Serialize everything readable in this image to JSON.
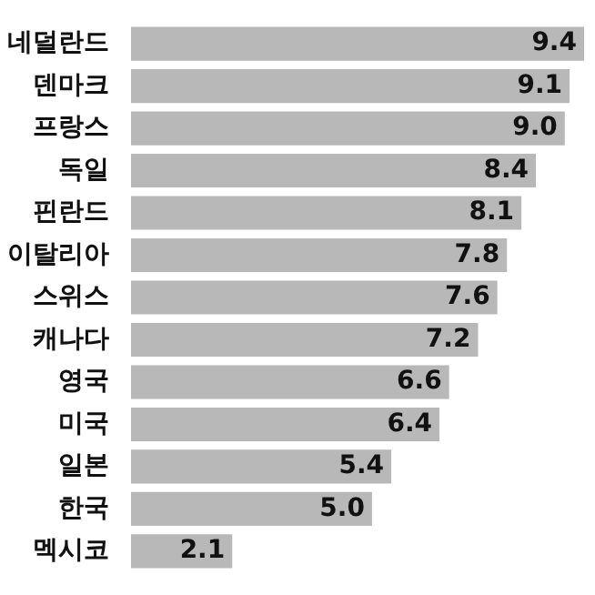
{
  "chart_data": {
    "type": "bar",
    "orientation": "horizontal",
    "categories": [
      "네덜란드",
      "덴마크",
      "프랑스",
      "독일",
      "핀란드",
      "이탈리아",
      "스위스",
      "캐나다",
      "영국",
      "미국",
      "일본",
      "한국",
      "멕시코"
    ],
    "values": [
      9.4,
      9.1,
      9.0,
      8.4,
      8.1,
      7.8,
      7.6,
      7.2,
      6.6,
      6.4,
      5.4,
      5.0,
      2.1
    ],
    "value_labels": [
      "9.4",
      "9.1",
      "9.0",
      "8.4",
      "8.1",
      "7.8",
      "7.6",
      "7.2",
      "6.6",
      "6.4",
      "5.4",
      "5.0",
      "2.1"
    ],
    "color": "#b8b8b8"
  }
}
